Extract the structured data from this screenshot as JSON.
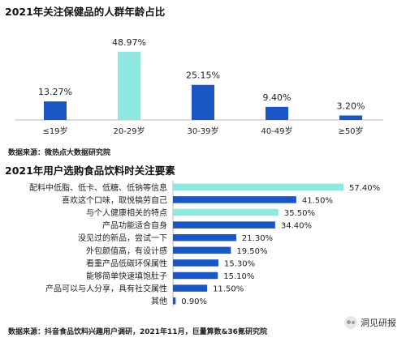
{
  "chart_data": [
    {
      "type": "bar",
      "title": "2021年关注保健品的人群年龄占比",
      "categories": [
        "≤19岁",
        "20-29岁",
        "30-39岁",
        "40-49岁",
        "≥50岁"
      ],
      "values": [
        13.27,
        48.97,
        25.15,
        9.4,
        3.2
      ],
      "data_labels": [
        "13.27%",
        "48.97%",
        "25.15%",
        "9.40%",
        "3.20%"
      ],
      "highlight_index": 1,
      "colors": {
        "bar": "#1a56c4",
        "highlight": "#8ee8df",
        "axis": "#bbbbbb"
      },
      "ylim": [
        0,
        50
      ],
      "grid": false,
      "legend": "none",
      "source": "数据来源：微热点大数据研究院"
    },
    {
      "type": "bar",
      "orientation": "horizontal",
      "title": "2021年用户选购食品饮料时关注要素",
      "categories": [
        "配料中低脂、低卡、低糖、低钠等信息",
        "喜欢这个口味，取悦犒劳自己",
        "与个人健康相关的特点",
        "产品功能适合自身",
        "没见过的新品，尝试一下",
        "外包颜值高，有设计感",
        "看重产品低碳环保属性",
        "能够简单快速填饱肚子",
        "产品可以与人分享，具有社交属性",
        "其他"
      ],
      "values": [
        57.4,
        41.5,
        35.5,
        34.4,
        21.3,
        19.5,
        15.3,
        15.1,
        11.5,
        0.9
      ],
      "data_labels": [
        "57.40%",
        "41.50%",
        "35.50%",
        "34.40%",
        "21.30%",
        "19.50%",
        "15.30%",
        "15.10%",
        "11.50%",
        "0.90%"
      ],
      "highlight_indices": [
        0,
        2
      ],
      "colors": {
        "bar": "#1a56c4",
        "highlight": "#8ee8df",
        "axis": "#bbbbbb"
      },
      "xlim": [
        0,
        60
      ],
      "grid": false,
      "legend": "none",
      "source": "数据来源：抖音食品饮料兴趣用户调研，2021年11月，巨量算数&36氪研究院"
    }
  ],
  "watermark": {
    "text": "洞见研报",
    "icon": "wechat-icon"
  }
}
